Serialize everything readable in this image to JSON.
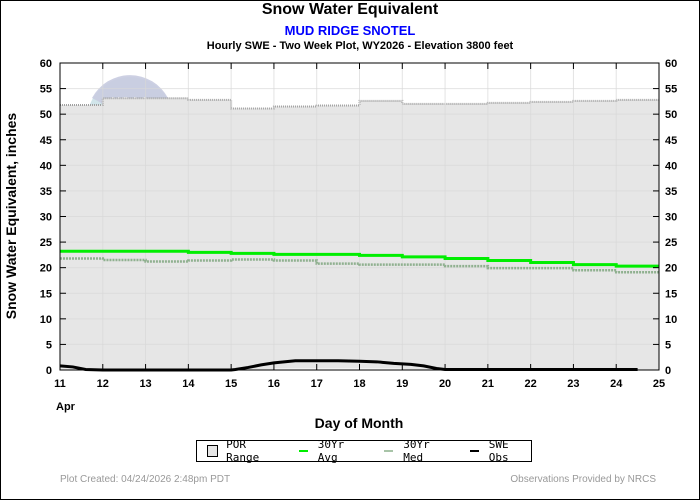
{
  "header": {
    "title": "Snow Water Equivalent",
    "station": "MUD RIDGE SNOTEL",
    "description": "Hourly SWE - Two Week Plot, WY2026 -  Elevation 3800 feet"
  },
  "footer": {
    "created": "Plot Created: 04/24/2026 2:48pm PDT",
    "provider": "Observations Provided by NRCS"
  },
  "watermark": "NOAA",
  "chart_data": {
    "type": "line",
    "title": "Snow Water Equivalent",
    "subtitle": "MUD RIDGE SNOTEL",
    "xlabel": "Day of Month",
    "xlabel_month": "Apr",
    "ylabel": "Snow Water Equivalent, inches",
    "xlim": [
      11,
      25
    ],
    "ylim": [
      0,
      60
    ],
    "x_ticks": [
      11,
      12,
      13,
      14,
      15,
      16,
      17,
      18,
      19,
      20,
      21,
      22,
      23,
      24,
      25
    ],
    "y_ticks": [
      0,
      5,
      10,
      15,
      20,
      25,
      30,
      35,
      40,
      45,
      50,
      55,
      60
    ],
    "grid": true,
    "legend_position": "bottom-center",
    "colors": {
      "por_fill": "#e6e6e6",
      "por_edge": "#a0a0a0",
      "avg": "#00ee00",
      "med": "#8fb08f",
      "obs": "#000000"
    },
    "series": [
      {
        "name": "POR Range",
        "kind": "range",
        "days": [
          11,
          12,
          13,
          14,
          15,
          16,
          17,
          18,
          19,
          20,
          21,
          22,
          23,
          24
        ],
        "max": [
          51.8,
          53.1,
          53.1,
          52.8,
          51.1,
          51.5,
          51.7,
          52.6,
          52.0,
          52.0,
          52.2,
          52.4,
          52.6,
          52.8
        ],
        "min": [
          0.0,
          0.0,
          0.0,
          0.0,
          0.0,
          0.3,
          0.3,
          0.3,
          0.0,
          0.0,
          0.0,
          0.0,
          0.0,
          0.0
        ]
      },
      {
        "name": "30Yr Avg",
        "kind": "step",
        "days": [
          11,
          12,
          13,
          14,
          15,
          16,
          17,
          18,
          19,
          20,
          21,
          22,
          23,
          24
        ],
        "values": [
          23.2,
          23.2,
          23.2,
          23.0,
          22.8,
          22.6,
          22.6,
          22.4,
          22.1,
          21.8,
          21.4,
          21.0,
          20.6,
          20.3
        ]
      },
      {
        "name": "30Yr Med",
        "kind": "step",
        "days": [
          11,
          12,
          13,
          14,
          15,
          16,
          17,
          18,
          19,
          20,
          21,
          22,
          23,
          24
        ],
        "values": [
          21.8,
          21.5,
          21.2,
          21.4,
          21.6,
          21.4,
          20.8,
          20.6,
          20.6,
          20.3,
          19.9,
          19.9,
          19.5,
          19.1
        ]
      },
      {
        "name": "SWE Obs",
        "kind": "line",
        "x": [
          11.0,
          11.3,
          11.6,
          12.0,
          13.0,
          14.0,
          15.0,
          15.1,
          15.4,
          15.7,
          16.0,
          16.5,
          17.0,
          17.5,
          18.0,
          18.4,
          18.8,
          19.2,
          19.5,
          19.8,
          20.0,
          21.0,
          22.0,
          23.0,
          24.0,
          24.5
        ],
        "y": [
          0.8,
          0.6,
          0.1,
          0.0,
          0.0,
          0.0,
          0.0,
          0.1,
          0.5,
          1.0,
          1.4,
          1.8,
          1.8,
          1.8,
          1.7,
          1.6,
          1.3,
          1.1,
          0.8,
          0.3,
          0.1,
          0.1,
          0.1,
          0.1,
          0.1,
          0.1
        ]
      }
    ],
    "legend": [
      "POR Range",
      "30Yr Avg",
      "30Yr Med",
      "SWE Obs"
    ]
  }
}
